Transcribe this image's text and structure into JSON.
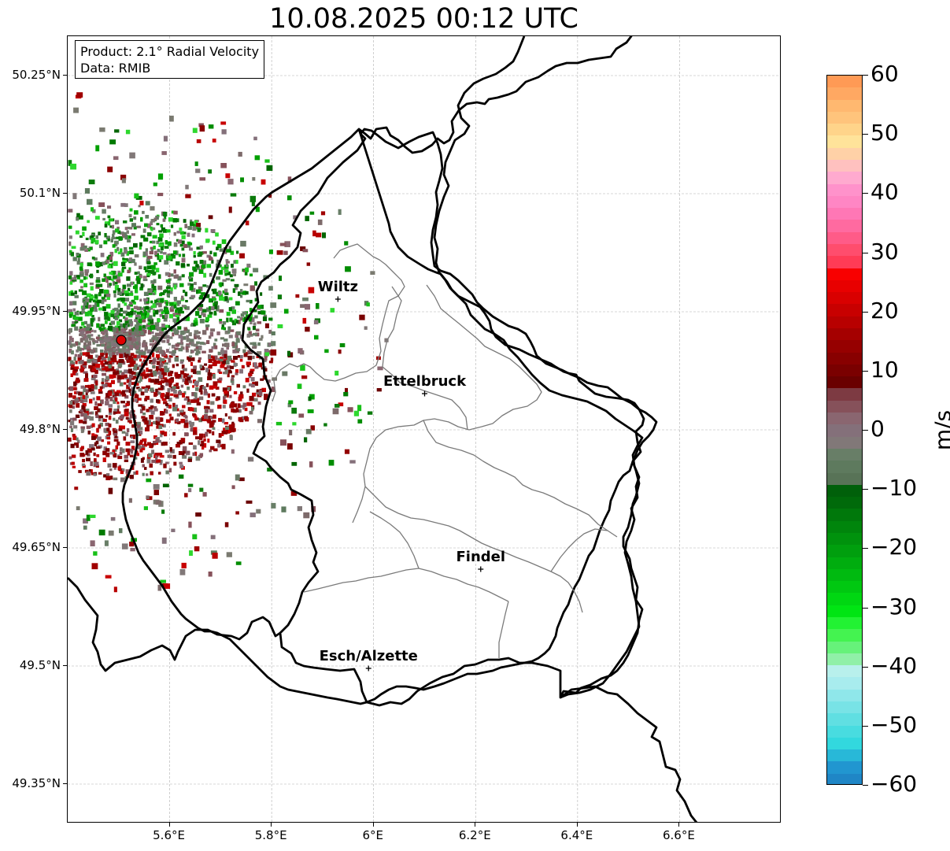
{
  "title": "10.08.2025 00:12 UTC",
  "info": {
    "product": "Product: 2.1° Radial Velocity",
    "data": "Data: RMIB"
  },
  "axes": {
    "y_ticks": [
      {
        "label": "50.25°N",
        "lat": 50.25
      },
      {
        "label": "50.1°N",
        "lat": 50.1
      },
      {
        "label": "49.95°N",
        "lat": 49.95
      },
      {
        "label": "49.8°N",
        "lat": 49.8
      },
      {
        "label": "49.65°N",
        "lat": 49.65
      },
      {
        "label": "49.5°N",
        "lat": 49.5
      },
      {
        "label": "49.35°N",
        "lat": 49.35
      }
    ],
    "x_ticks": [
      {
        "label": "5.6°E",
        "lon": 5.6
      },
      {
        "label": "5.8°E",
        "lon": 5.8
      },
      {
        "label": "6°E",
        "lon": 6.0
      },
      {
        "label": "6.2°E",
        "lon": 6.2
      },
      {
        "label": "6.4°E",
        "lon": 6.4
      },
      {
        "label": "6.6°E",
        "lon": 6.6
      }
    ],
    "lon_range": [
      5.4,
      6.8
    ],
    "lat_range": [
      49.3,
      50.3
    ],
    "grid": true
  },
  "cities": [
    {
      "name": "Wiltz",
      "lon": 5.93,
      "lat": 49.966
    },
    {
      "name": "Ettelbruck",
      "lon": 6.1,
      "lat": 49.846
    },
    {
      "name": "Findel",
      "lon": 6.21,
      "lat": 49.623
    },
    {
      "name": "Esch/Alzette",
      "lon": 5.99,
      "lat": 49.497
    }
  ],
  "radar_site": {
    "lon": 5.505,
    "lat": 49.914
  },
  "colorbar": {
    "unit": "m/s",
    "min": -60,
    "max": 60,
    "ticks": [
      "60",
      "50",
      "40",
      "30",
      "20",
      "10",
      "0",
      "−10",
      "−20",
      "−30",
      "−40",
      "−50",
      "−60"
    ],
    "colors_top_to_bottom": [
      "#ff9a55",
      "#ffa862",
      "#ffb870",
      "#ffc47c",
      "#ffd48a",
      "#ffe39a",
      "#ffd1a7",
      "#ffc1bf",
      "#ffaacf",
      "#ff92cb",
      "#ff86c4",
      "#ff77b5",
      "#ff6aa0",
      "#ff5b88",
      "#ff4d6d",
      "#ff3b56",
      "#f80000",
      "#e80000",
      "#d90000",
      "#c80000",
      "#b80000",
      "#a50000",
      "#960000",
      "#880000",
      "#7a0000",
      "#6a0000",
      "#7d3a42",
      "#86515a",
      "#8a6670",
      "#84707a",
      "#817878",
      "#687e67",
      "#5e7a5e",
      "#587357",
      "#00600a",
      "#006a0a",
      "#00780b",
      "#00850c",
      "#00920d",
      "#009f0e",
      "#00ad0f",
      "#00ba10",
      "#00c811",
      "#00d712",
      "#00e513",
      "#22f233",
      "#44f350",
      "#66f27a",
      "#90f0a8",
      "#b8f0ec",
      "#a8ecee",
      "#8fe7ea",
      "#78e3e6",
      "#60dfe2",
      "#48dce0",
      "#32d8de",
      "#28b8d8",
      "#2196d0",
      "#1f86c6"
    ]
  }
}
